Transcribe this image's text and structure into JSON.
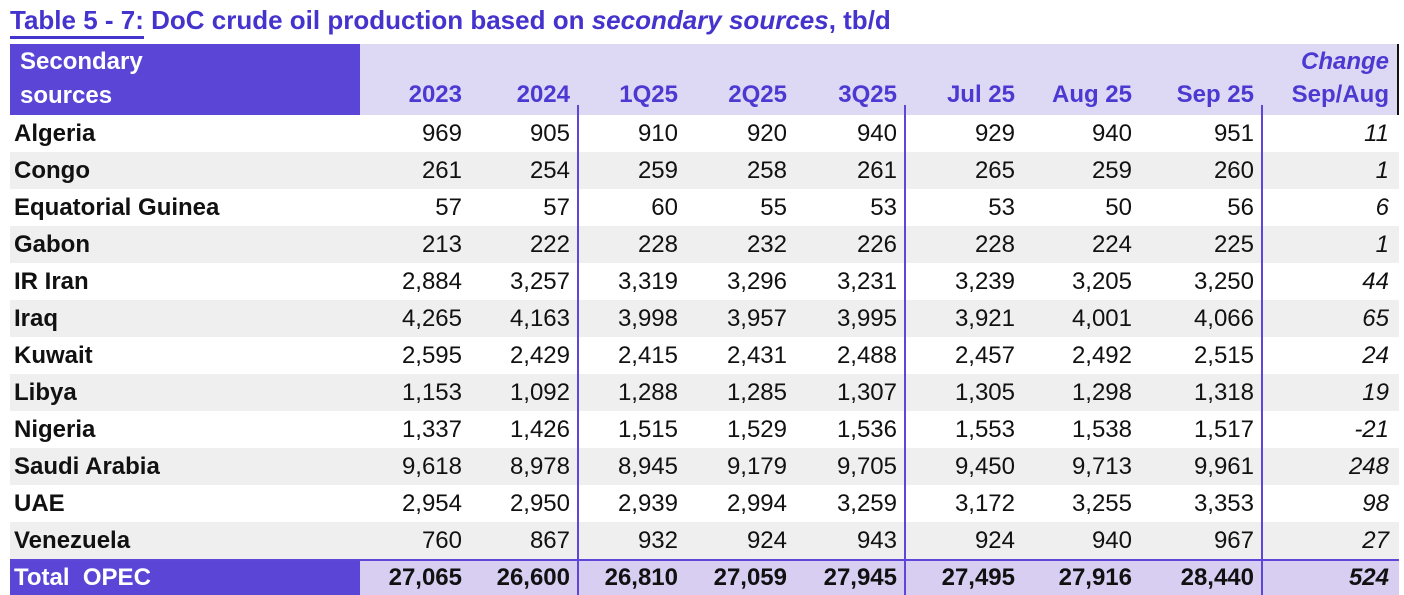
{
  "colors": {
    "title": "#4533CE",
    "headtext": "#4B39D2",
    "purple": "#5A45D7",
    "lavender": "#DDD8F4",
    "lavdark": "#D7CEF1",
    "rowalt": "#EFEFEF",
    "divider": "#5E46D6"
  },
  "title": {
    "prefix": "Table 5 - 7:",
    "mid": " DoC crude oil production based on ",
    "italic": "secondary sources",
    "suffix": ", tb/d"
  },
  "table": {
    "header": {
      "col0_line1": "Secondary",
      "col0_line2": "sources",
      "columns": [
        "2023",
        "2024",
        "1Q25",
        "2Q25",
        "3Q25",
        "Jul 25",
        "Aug 25",
        "Sep 25"
      ],
      "change_line1": "Change",
      "change_line2": "Sep/Aug"
    },
    "rows": [
      {
        "name": "Algeria",
        "values": [
          "969",
          "905",
          "910",
          "920",
          "940",
          "929",
          "940",
          "951"
        ],
        "change": "11"
      },
      {
        "name": "Congo",
        "values": [
          "261",
          "254",
          "259",
          "258",
          "261",
          "265",
          "259",
          "260"
        ],
        "change": "1"
      },
      {
        "name": "Equatorial Guinea",
        "values": [
          "57",
          "57",
          "60",
          "55",
          "53",
          "53",
          "50",
          "56"
        ],
        "change": "6"
      },
      {
        "name": "Gabon",
        "values": [
          "213",
          "222",
          "228",
          "232",
          "226",
          "228",
          "224",
          "225"
        ],
        "change": "1"
      },
      {
        "name": "IR Iran",
        "values": [
          "2,884",
          "3,257",
          "3,319",
          "3,296",
          "3,231",
          "3,239",
          "3,205",
          "3,250"
        ],
        "change": "44"
      },
      {
        "name": "Iraq",
        "values": [
          "4,265",
          "4,163",
          "3,998",
          "3,957",
          "3,995",
          "3,921",
          "4,001",
          "4,066"
        ],
        "change": "65"
      },
      {
        "name": "Kuwait",
        "values": [
          "2,595",
          "2,429",
          "2,415",
          "2,431",
          "2,488",
          "2,457",
          "2,492",
          "2,515"
        ],
        "change": "24"
      },
      {
        "name": "Libya",
        "values": [
          "1,153",
          "1,092",
          "1,288",
          "1,285",
          "1,307",
          "1,305",
          "1,298",
          "1,318"
        ],
        "change": "19"
      },
      {
        "name": "Nigeria",
        "values": [
          "1,337",
          "1,426",
          "1,515",
          "1,529",
          "1,536",
          "1,553",
          "1,538",
          "1,517"
        ],
        "change": "-21"
      },
      {
        "name": "Saudi Arabia",
        "values": [
          "9,618",
          "8,978",
          "8,945",
          "9,179",
          "9,705",
          "9,450",
          "9,713",
          "9,961"
        ],
        "change": "248"
      },
      {
        "name": "UAE",
        "values": [
          "2,954",
          "2,950",
          "2,939",
          "2,994",
          "3,259",
          "3,172",
          "3,255",
          "3,353"
        ],
        "change": "98"
      },
      {
        "name": "Venezuela",
        "values": [
          "760",
          "867",
          "932",
          "924",
          "943",
          "924",
          "940",
          "967"
        ],
        "change": "27"
      }
    ],
    "total": {
      "name": "Total  OPEC",
      "values": [
        "27,065",
        "26,600",
        "26,810",
        "27,059",
        "27,945",
        "27,495",
        "27,916",
        "28,440"
      ],
      "change": "524"
    }
  }
}
